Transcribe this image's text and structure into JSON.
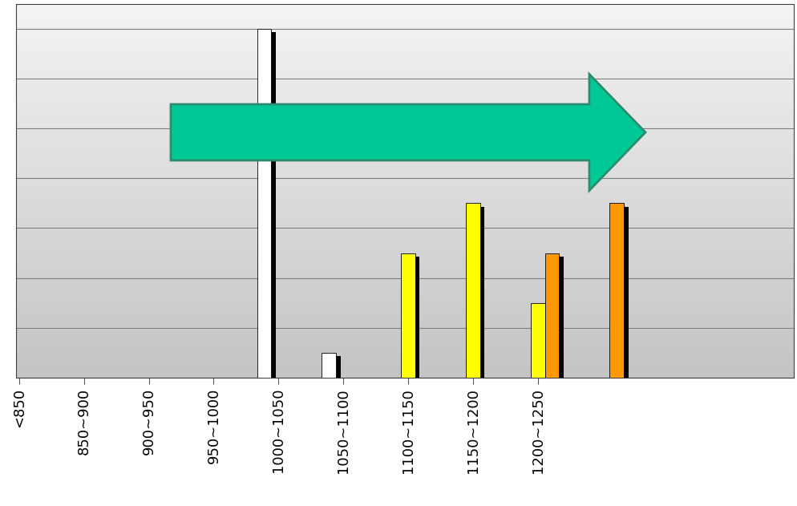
{
  "chart_data": {
    "type": "bar",
    "categories": [
      "<850",
      "850~900",
      "900~950",
      "950~1000",
      "1000~1050",
      "1050~1100",
      "1100~1150",
      "1150~1200",
      "1200~1250",
      null,
      null,
      null
    ],
    "series": [
      {
        "color": "#ffffff",
        "values": [
          null,
          null,
          null,
          null,
          7,
          0.5,
          null,
          null,
          null,
          null,
          null,
          null
        ]
      },
      {
        "color": "#ffff00",
        "values": [
          null,
          null,
          null,
          null,
          null,
          null,
          2.5,
          3.5,
          1.5,
          null,
          null,
          null
        ]
      },
      {
        "color": "#ff9900",
        "values": [
          null,
          null,
          null,
          null,
          null,
          null,
          null,
          null,
          2.5,
          3.5,
          null,
          null
        ]
      }
    ],
    "ylim": [
      0,
      7.5
    ],
    "yticks": [
      0,
      1,
      2,
      3,
      4,
      5,
      6,
      7
    ],
    "grid": true,
    "tick_labels": "x"
  }
}
